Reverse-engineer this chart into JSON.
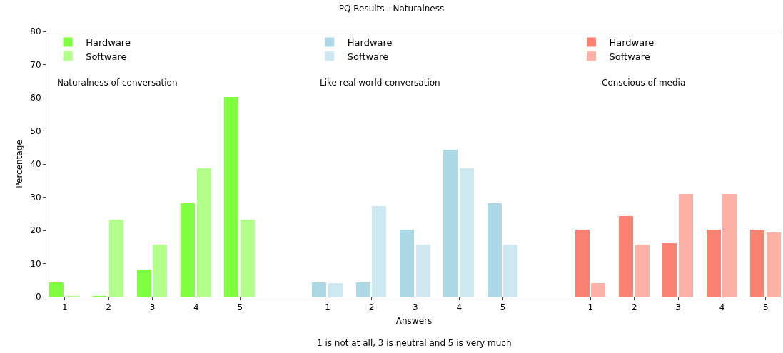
{
  "chart_data": {
    "type": "bar",
    "title": "PQ Results - Naturalness",
    "xlabel": "Answers",
    "ylabel": "Percentage",
    "annotations": [
      "Naturalness of conversation",
      "Like real world conversation",
      "Conscious of media",
      "1 is not at all, 3 is neutral and 5 is very much"
    ],
    "categories": [
      "1",
      "2",
      "3",
      "4",
      "5",
      null,
      "1",
      "2",
      "3",
      "4",
      "5",
      null,
      "1",
      "2",
      "3",
      "4",
      "5"
    ],
    "series": [
      {
        "name": "Hardware",
        "color": "#80ff40",
        "values": [
          4,
          0,
          8,
          28,
          60,
          null,
          null,
          null,
          null,
          null,
          null,
          null,
          null,
          null,
          null,
          null,
          null
        ]
      },
      {
        "name": "Software",
        "color": "#b3ff8c",
        "values": [
          0,
          23,
          15.4,
          38.5,
          23,
          null,
          null,
          null,
          null,
          null,
          null,
          null,
          null,
          null,
          null,
          null,
          null
        ]
      },
      {
        "name": "Hardware",
        "color": "#add8e6",
        "values": [
          null,
          null,
          null,
          null,
          null,
          null,
          4,
          4,
          20,
          44,
          28,
          null,
          null,
          null,
          null,
          null,
          null
        ]
      },
      {
        "name": "Software",
        "color": "#cde8f0",
        "values": [
          null,
          null,
          null,
          null,
          null,
          null,
          3.8,
          27,
          15.4,
          38.5,
          15.4,
          null,
          null,
          null,
          null,
          null,
          null
        ]
      },
      {
        "name": "Hardware",
        "color": "#fa8072",
        "values": [
          null,
          null,
          null,
          null,
          null,
          null,
          null,
          null,
          null,
          null,
          null,
          null,
          20,
          24,
          16,
          20,
          20
        ]
      },
      {
        "name": "Software",
        "color": "#fcb0a6",
        "values": [
          null,
          null,
          null,
          null,
          null,
          null,
          null,
          null,
          null,
          null,
          null,
          null,
          3.8,
          15.4,
          30.8,
          30.8,
          19.2
        ]
      }
    ],
    "ylim": [
      0,
      80
    ],
    "yticks": [
      0,
      10,
      20,
      30,
      40,
      50,
      60,
      70,
      80
    ],
    "grid": false,
    "legend": "top left"
  }
}
